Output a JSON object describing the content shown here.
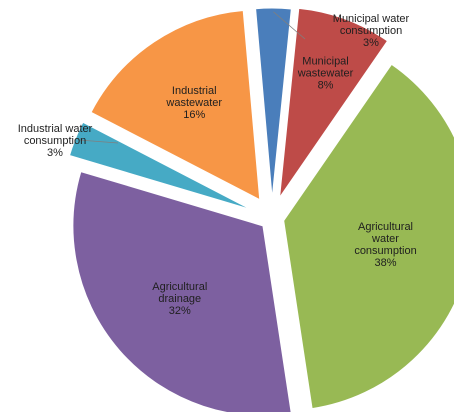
{
  "chart_data": {
    "type": "pie",
    "exploded": true,
    "slices": [
      {
        "label_lines": [
          "Municipal water",
          "consumption",
          "3%"
        ],
        "value": 3,
        "color": "#4a7ebb"
      },
      {
        "label_lines": [
          "Municipal",
          "wastewater",
          "8%"
        ],
        "value": 8,
        "color": "#be4b48"
      },
      {
        "label_lines": [
          "Agricultural",
          "water",
          "consumption",
          "38%"
        ],
        "value": 38,
        "color": "#98b954"
      },
      {
        "label_lines": [
          "Agricultural",
          "drainage",
          "32%"
        ],
        "value": 32,
        "color": "#7d60a0"
      },
      {
        "label_lines": [
          "Industrial water",
          "consumption",
          "3%"
        ],
        "value": 3,
        "color": "#46aac5"
      },
      {
        "label_lines": [
          "Industrial",
          "wastewater",
          "16%"
        ],
        "value": 16,
        "color": "#f79646"
      }
    ]
  }
}
